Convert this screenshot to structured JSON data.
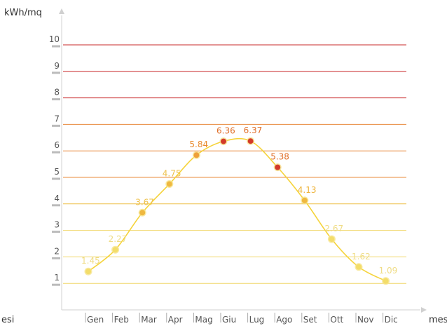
{
  "chart_data": {
    "type": "line",
    "ylabel": "kWh/mq",
    "xlabel": "mesi",
    "xlabel_left": "esi",
    "categories": [
      "Gen",
      "Feb",
      "Mar",
      "Apr",
      "Mag",
      "Giu",
      "Lug",
      "Ago",
      "Set",
      "Ott",
      "Nov",
      "Dic"
    ],
    "values": [
      1.45,
      2.27,
      3.67,
      4.75,
      5.84,
      6.36,
      6.37,
      5.38,
      4.13,
      2.67,
      1.62,
      1.09
    ],
    "value_labels": [
      "1.45",
      "2.27",
      "3.67",
      "4.75",
      "5.84",
      "6.36",
      "6.37",
      "5.38",
      "4.13",
      "2.67",
      "1.62",
      "1.09"
    ],
    "yticks": [
      "1",
      "2",
      "3",
      "4",
      "5",
      "6",
      "7",
      "8",
      "9",
      "10"
    ],
    "ylim": [
      0,
      10
    ],
    "grid": true,
    "line_color": "#f5d33a",
    "gridline_colors": [
      "#f0d76a",
      "#f0d76a",
      "#f0d76a",
      "#eec14a",
      "#e8883a",
      "#e8883a",
      "#e8883a",
      "#c9282a",
      "#c9282a",
      "#c9282a"
    ],
    "point_colors": [
      "#f3dd6a",
      "#f3dd6a",
      "#efb840",
      "#efb840",
      "#eea03a",
      "#d33a2a",
      "#d33a2a",
      "#d33a2a",
      "#efb840",
      "#f3dd6a",
      "#f3dd6a",
      "#f3dd6a"
    ],
    "label_colors": [
      "#efdc85",
      "#efdc85",
      "#eec24d",
      "#eec24d",
      "#e88b2e",
      "#e0702a",
      "#e0702a",
      "#e0702a",
      "#eeb33a",
      "#efdc85",
      "#efdc85",
      "#efdc85"
    ]
  }
}
